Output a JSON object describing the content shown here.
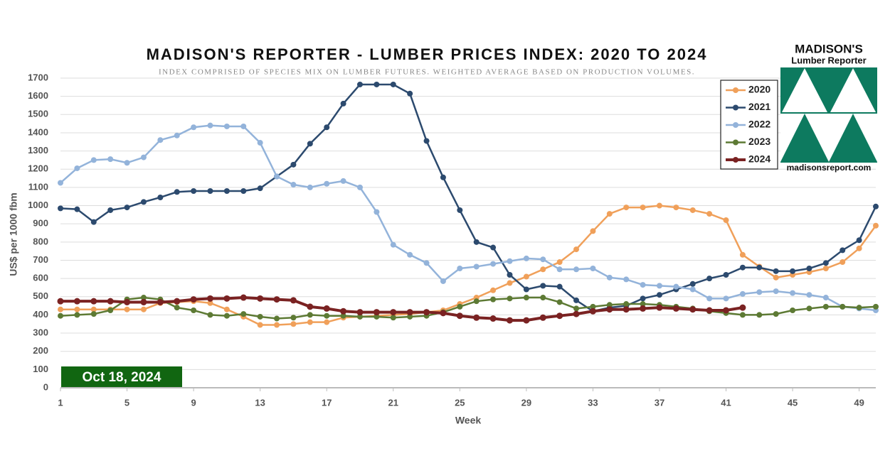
{
  "chart_data": {
    "type": "line",
    "title": "MADISON'S REPORTER - LUMBER PRICES INDEX: 2020 TO 2024",
    "subtitle": "INDEX COMPRISED OF SPECIES MIX ON LUMBER FUTURES. WEIGHTED AVERAGE BASED ON PRODUCTION VOLUMES.",
    "x_label": "Week",
    "y_label": "US$ per 1000 fbm",
    "annotation": "Oct 18, 2024",
    "logo": {
      "name": "MADISON'S",
      "subtitle": "Lumber Reporter",
      "url": "madisonsreport.com"
    },
    "x": [
      1,
      2,
      3,
      4,
      5,
      6,
      7,
      8,
      9,
      10,
      11,
      12,
      13,
      14,
      15,
      16,
      17,
      18,
      19,
      20,
      21,
      22,
      23,
      24,
      25,
      26,
      27,
      28,
      29,
      30,
      31,
      32,
      33,
      34,
      35,
      36,
      37,
      38,
      39,
      40,
      41,
      42,
      43,
      44,
      45,
      46,
      47,
      48,
      49,
      50
    ],
    "xlim": [
      1,
      50
    ],
    "xticks": [
      1,
      5,
      9,
      13,
      17,
      21,
      25,
      29,
      33,
      37,
      41,
      45,
      49
    ],
    "ylim": [
      0,
      1700
    ],
    "yticks": [
      0,
      100,
      200,
      300,
      400,
      500,
      600,
      700,
      800,
      900,
      1000,
      1100,
      1200,
      1300,
      1400,
      1500,
      1600,
      1700
    ],
    "grid": true,
    "legend": "upper right",
    "series": [
      {
        "name": "2020",
        "color": "#f0a05a",
        "values": [
          430,
          430,
          430,
          430,
          430,
          430,
          465,
          470,
          475,
          465,
          430,
          390,
          345,
          345,
          350,
          360,
          360,
          385,
          390,
          395,
          400,
          405,
          415,
          425,
          460,
          495,
          535,
          575,
          610,
          650,
          690,
          760,
          860,
          955,
          990,
          990,
          1000,
          990,
          975,
          955,
          920,
          730,
          665,
          605,
          620,
          635,
          655,
          690,
          765,
          890
        ]
      },
      {
        "name": "2021",
        "color": "#2c4a6e",
        "values": [
          985,
          980,
          910,
          975,
          990,
          1020,
          1045,
          1075,
          1080,
          1080,
          1080,
          1080,
          1095,
          1160,
          1225,
          1340,
          1430,
          1560,
          1665,
          1665,
          1665,
          1615,
          1355,
          1155,
          975,
          800,
          770,
          620,
          540,
          560,
          555,
          480,
          420,
          440,
          450,
          490,
          510,
          540,
          570,
          600,
          620,
          660,
          660,
          640,
          640,
          655,
          685,
          755,
          810,
          995
        ]
      },
      {
        "name": "2022",
        "color": "#93b3da",
        "values": [
          1125,
          1205,
          1250,
          1255,
          1235,
          1265,
          1360,
          1385,
          1430,
          1440,
          1435,
          1435,
          1345,
          1160,
          1115,
          1100,
          1120,
          1135,
          1100,
          965,
          785,
          730,
          685,
          585,
          655,
          665,
          680,
          695,
          710,
          705,
          650,
          650,
          655,
          605,
          595,
          565,
          560,
          555,
          540,
          490,
          490,
          515,
          525,
          530,
          520,
          510,
          495,
          445,
          435,
          425
        ]
      },
      {
        "name": "2023",
        "color": "#5d7a34",
        "values": [
          395,
          400,
          405,
          425,
          485,
          495,
          485,
          440,
          425,
          400,
          395,
          405,
          390,
          380,
          385,
          400,
          395,
          395,
          390,
          390,
          385,
          390,
          395,
          415,
          445,
          475,
          485,
          490,
          495,
          495,
          470,
          435,
          445,
          455,
          460,
          460,
          455,
          445,
          435,
          420,
          410,
          400,
          400,
          405,
          425,
          435,
          445,
          445,
          440,
          445
        ]
      },
      {
        "name": "2024",
        "color": "#7a2222",
        "values": [
          475,
          475,
          475,
          475,
          470,
          470,
          470,
          475,
          485,
          490,
          490,
          495,
          490,
          485,
          480,
          445,
          435,
          420,
          415,
          415,
          415,
          415,
          415,
          410,
          395,
          385,
          380,
          370,
          370,
          385,
          395,
          405,
          420,
          430,
          430,
          435,
          440,
          435,
          430,
          425,
          425,
          440,
          null,
          null,
          null,
          null,
          null,
          null,
          null,
          null
        ]
      }
    ]
  }
}
